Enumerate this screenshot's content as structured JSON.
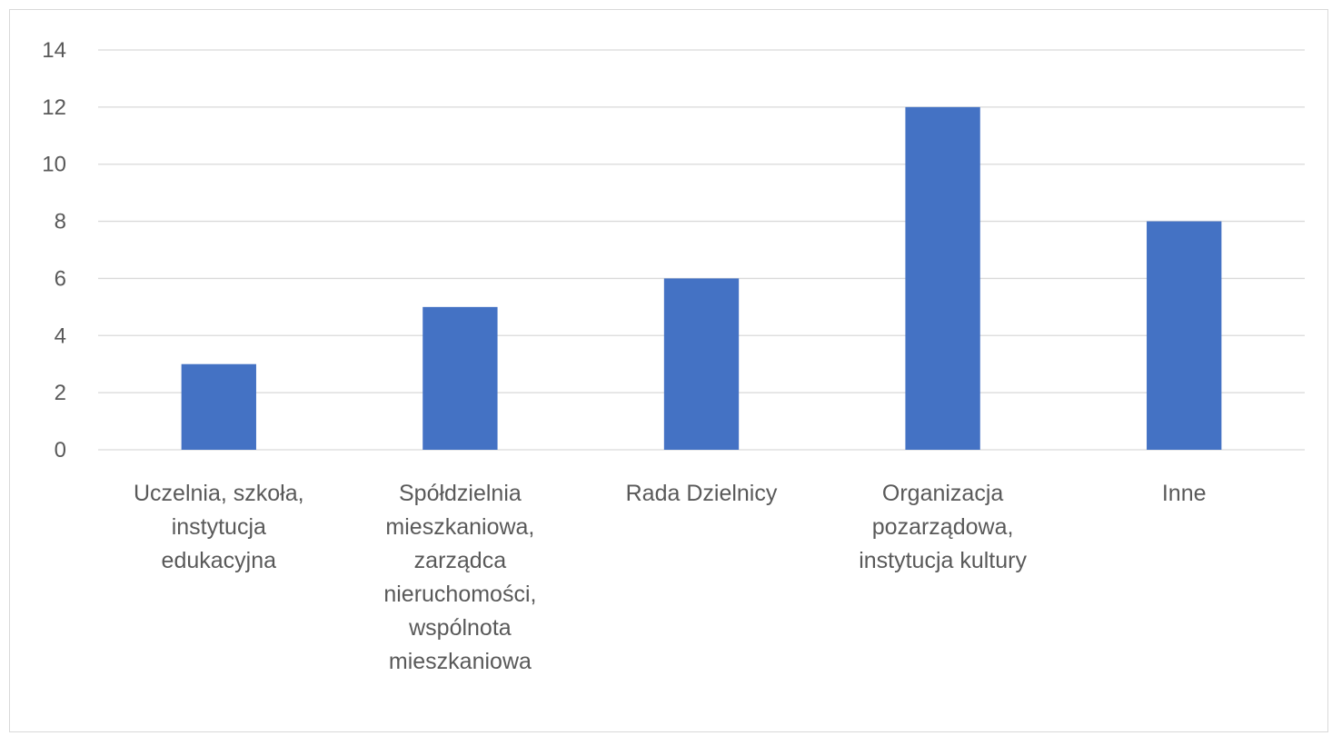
{
  "chart_data": {
    "type": "bar",
    "categories": [
      "Uczelnia, szkoła, instytucja edukacyjna",
      "Spółdzielnia mieszkaniowa, zarządca nieruchomości, wspólnota mieszkaniowa",
      "Rada Dzielnicy",
      "Organizacja pozarządowa, instytucja kultury",
      "Inne"
    ],
    "category_lines": [
      [
        "Uczelnia, szkoła,",
        "instytucja",
        "edukacyjna"
      ],
      [
        "Spółdzielnia",
        "mieszkaniowa,",
        "zarządca",
        "nieruchomości,",
        "wspólnota",
        "mieszkaniowa"
      ],
      [
        "Rada Dzielnicy"
      ],
      [
        "Organizacja",
        "pozarządowa,",
        "instytucja kultury"
      ],
      [
        "Inne"
      ]
    ],
    "values": [
      3,
      5,
      6,
      12,
      8
    ],
    "ylim": [
      0,
      14
    ],
    "yticks": [
      0,
      2,
      4,
      6,
      8,
      10,
      12,
      14
    ],
    "grid": true,
    "legend": "none",
    "title": "",
    "xlabel": "",
    "ylabel": ""
  },
  "colors": {
    "bar": "#4472c4",
    "grid": "#d9d9d9",
    "text": "#595959",
    "accent_strip": "#ffc000"
  }
}
